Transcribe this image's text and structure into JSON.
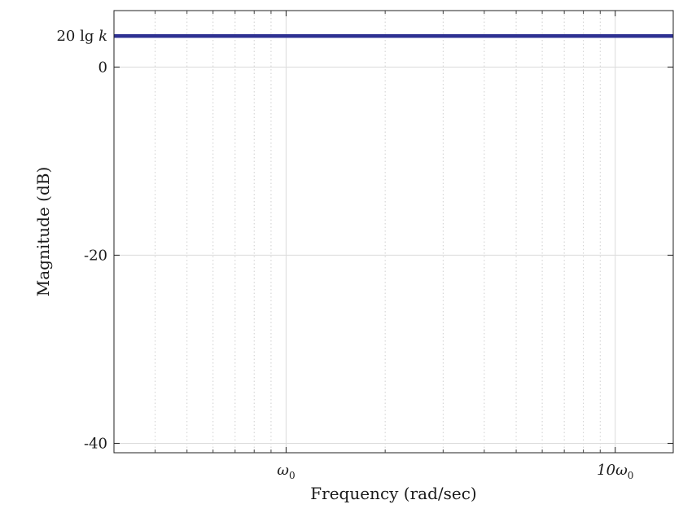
{
  "chart_data": {
    "type": "line",
    "title": "",
    "xlabel": "Frequency (rad/sec)",
    "ylabel": "Magnitude (dB)",
    "x_scale": "log",
    "x_unit_symbol": "ω0",
    "xlim": [
      0.3,
      15
    ],
    "ylim": [
      -41,
      6
    ],
    "x_major_ticks": [
      {
        "value": 1,
        "label": "ω",
        "sub": "0"
      },
      {
        "value": 10,
        "label": "10ω",
        "sub": "0"
      }
    ],
    "x_minor_ticks": [
      0.4,
      0.5,
      0.6,
      0.7,
      0.8,
      0.9,
      2,
      3,
      4,
      5,
      6,
      7,
      8,
      9
    ],
    "y_ticks": [
      {
        "value": 0,
        "label": "0"
      },
      {
        "value": -20,
        "label": "-20"
      },
      {
        "value": -40,
        "label": "-40"
      }
    ],
    "constant_label": {
      "value": 3.3,
      "text": "20 lg k"
    },
    "grid": true,
    "series": [
      {
        "x": [
          0.3,
          15
        ],
        "y": [
          3.3,
          3.3
        ],
        "color": "#2e3192"
      }
    ]
  }
}
